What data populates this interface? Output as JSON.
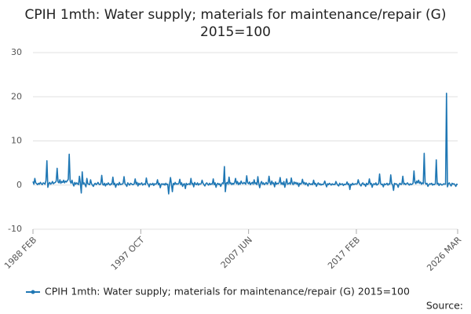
{
  "chart_data": {
    "type": "line",
    "title": "CPIH 1mth: Water supply; materials for maintenance/repair (G) 2015=100",
    "source": "Source:",
    "xlim": [
      0,
      457
    ],
    "xticks": [
      {
        "value": 0,
        "label": "1988 FEB"
      },
      {
        "value": 116,
        "label": "1997 OCT"
      },
      {
        "value": 232,
        "label": "2007 JUN"
      },
      {
        "value": 348,
        "label": "2017 FEB"
      },
      {
        "value": 457,
        "label": "2026 MAR"
      }
    ],
    "ylim": [
      -10,
      30
    ],
    "yticks": [
      -10,
      0,
      10,
      20,
      30
    ],
    "grid": true,
    "series": [
      {
        "name": "CPIH 1mth: Water supply; materials for maintenance/repair (G) 2015=100",
        "color": "#1f77b4",
        "values": [
          0.8,
          0.2,
          1.5,
          0.5,
          0.3,
          0.1,
          0.4,
          0.2,
          0.6,
          0.3,
          0.1,
          0.5,
          0.4,
          0.2,
          1.0,
          5.5,
          -0.5,
          0.3,
          0.6,
          0.2,
          0.4,
          0.8,
          0.3,
          0.5,
          0.6,
          0.9,
          3.8,
          0.7,
          0.5,
          1.2,
          0.4,
          0.8,
          0.6,
          1.1,
          0.5,
          0.9,
          0.7,
          1.0,
          1.3,
          7.0,
          0.9,
          0.4,
          1.1,
          0.3,
          -0.2,
          0.6,
          0.2,
          0.5,
          0.3,
          0.1,
          2.0,
          0.4,
          -1.8,
          3.0,
          0.2,
          0.5,
          0.1,
          -0.4,
          1.5,
          0.3,
          0.2,
          0.1,
          1.2,
          0.3,
          0.0,
          -0.3,
          0.2,
          0.4,
          0.1,
          0.3,
          0.6,
          0.2,
          0.1,
          0.3,
          2.2,
          0.2,
          0.0,
          0.4,
          -0.2,
          0.3,
          0.1,
          0.5,
          0.2,
          0.0,
          0.3,
          0.2,
          1.8,
          0.1,
          0.4,
          -0.5,
          0.2,
          0.3,
          0.0,
          0.6,
          0.1,
          0.2,
          0.2,
          0.4,
          1.9,
          0.3,
          0.1,
          -0.3,
          0.5,
          0.2,
          0.0,
          0.4,
          0.3,
          0.1,
          0.1,
          0.3,
          1.4,
          0.2,
          0.6,
          -0.2,
          0.4,
          0.1,
          0.3,
          0.5,
          0.0,
          0.2,
          0.3,
          0.1,
          1.6,
          0.4,
          0.2,
          -0.4,
          0.3,
          0.2,
          0.1,
          0.4,
          -0.1,
          0.3,
          0.2,
          0.3,
          1.2,
          0.1,
          0.4,
          -0.6,
          0.2,
          0.3,
          0.1,
          0.3,
          0.0,
          0.4,
          0.1,
          0.2,
          -2.0,
          0.3,
          1.7,
          0.2,
          -1.5,
          0.4,
          0.1,
          0.6,
          0.2,
          0.3,
          0.2,
          0.4,
          1.3,
          0.1,
          0.5,
          -0.3,
          0.2,
          0.3,
          -0.8,
          0.4,
          0.1,
          0.2,
          0.3,
          0.1,
          1.5,
          0.2,
          0.4,
          -0.4,
          0.6,
          0.2,
          0.1,
          0.5,
          0.0,
          0.3,
          0.2,
          0.3,
          1.1,
          0.4,
          0.1,
          -0.2,
          0.3,
          0.5,
          0.2,
          0.0,
          0.4,
          0.1,
          0.3,
          0.2,
          1.4,
          0.1,
          0.5,
          -0.5,
          0.2,
          0.4,
          0.1,
          0.3,
          -0.3,
          0.2,
          0.5,
          0.3,
          4.2,
          -1.5,
          0.4,
          0.6,
          0.2,
          1.8,
          0.3,
          0.5,
          0.1,
          0.4,
          0.2,
          0.6,
          1.5,
          0.3,
          0.8,
          0.1,
          0.5,
          0.2,
          0.9,
          0.4,
          0.3,
          0.6,
          0.4,
          0.2,
          2.1,
          0.5,
          0.3,
          0.7,
          0.1,
          0.4,
          0.6,
          0.2,
          1.2,
          0.3,
          0.5,
          0.1,
          1.9,
          0.3,
          -0.6,
          0.4,
          0.8,
          0.2,
          0.5,
          0.1,
          0.3,
          0.6,
          0.2,
          0.4,
          2.0,
          0.6,
          0.1,
          0.9,
          0.3,
          0.5,
          -0.4,
          0.7,
          0.2,
          0.4,
          0.3,
          0.6,
          1.7,
          0.2,
          0.5,
          0.1,
          0.8,
          -0.5,
          0.4,
          1.4,
          0.2,
          0.3,
          0.5,
          0.2,
          1.6,
          0.4,
          0.1,
          0.7,
          0.3,
          0.6,
          0.2,
          0.5,
          -0.3,
          0.4,
          0.2,
          0.4,
          1.3,
          0.3,
          0.6,
          0.1,
          0.5,
          0.2,
          -0.2,
          0.4,
          0.3,
          0.1,
          0.3,
          0.1,
          1.1,
          0.2,
          0.4,
          -0.3,
          0.2,
          0.5,
          0.1,
          0.3,
          0.0,
          0.2,
          0.1,
          0.3,
          0.9,
          0.2,
          -0.4,
          0.3,
          0.1,
          0.4,
          0.2,
          0.0,
          0.3,
          0.1,
          0.2,
          0.1,
          0.8,
          0.3,
          0.0,
          -0.2,
          0.4,
          0.1,
          0.2,
          0.3,
          -0.1,
          0.2,
          0.1,
          0.2,
          0.7,
          0.1,
          0.3,
          -1.0,
          0.2,
          0.0,
          0.4,
          0.1,
          0.2,
          0.3,
          0.2,
          0.3,
          1.2,
          0.4,
          0.1,
          -0.2,
          0.3,
          0.5,
          0.1,
          0.2,
          -0.3,
          0.4,
          0.1,
          0.3,
          1.4,
          0.2,
          0.4,
          -0.5,
          0.2,
          0.3,
          0.1,
          0.5,
          0.0,
          0.2,
          0.3,
          2.5,
          0.4,
          0.1,
          0.2,
          -0.4,
          0.3,
          0.1,
          0.2,
          0.4,
          0.0,
          0.3,
          0.2,
          2.3,
          0.3,
          0.1,
          -1.2,
          0.4,
          0.2,
          0.3,
          0.1,
          -0.5,
          0.2,
          0.4,
          0.1,
          0.3,
          2.0,
          0.2,
          0.4,
          0.1,
          0.3,
          0.5,
          0.2,
          0.0,
          0.3,
          0.1,
          0.2,
          0.4,
          3.2,
          0.6,
          0.3,
          0.9,
          0.5,
          1.1,
          0.4,
          0.7,
          0.2,
          0.5,
          0.3,
          7.2,
          0.5,
          0.2,
          0.4,
          -0.3,
          0.1,
          0.3,
          0.2,
          0.4,
          0.0,
          0.2,
          0.1,
          0.3,
          5.7,
          0.2,
          0.4,
          -0.1,
          0.3,
          0.2,
          0.0,
          0.1,
          0.3,
          0.2,
          0.2,
          20.8,
          -0.4,
          0.3,
          0.5,
          0.1,
          -0.2,
          0.4,
          0.2,
          0.3,
          0.1,
          -0.3,
          0.2,
          0.1
        ]
      }
    ]
  }
}
